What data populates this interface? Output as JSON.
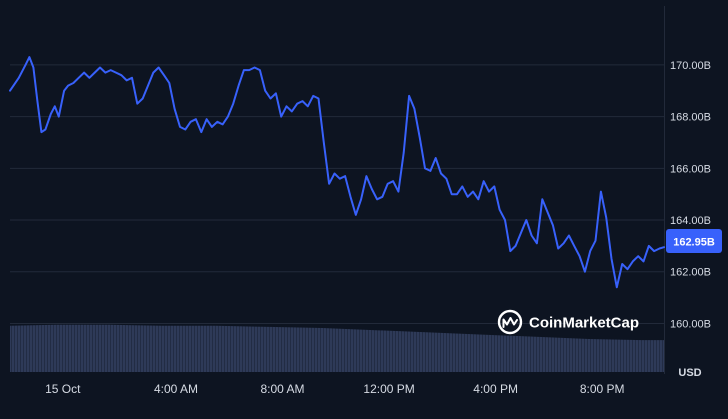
{
  "chart_data": {
    "type": "line",
    "currency": "USD",
    "current_value_label": "162.95B",
    "watermark": "CoinMarketCap",
    "y_ticks": [
      "170.00B",
      "168.00B",
      "166.00B",
      "164.00B",
      "162.00B",
      "160.00B"
    ],
    "ylim": [
      158.2,
      172.2
    ],
    "x_ticks": [
      "15 Oct",
      "4:00 AM",
      "8:00 AM",
      "12:00 PM",
      "4:00 PM",
      "8:00 PM"
    ],
    "x_tick_hours": [
      0.75,
      5.0,
      9.0,
      13.0,
      17.0,
      21.0
    ],
    "x_range_hours": [
      -1.23,
      23.32
    ],
    "series": [
      {
        "values": [
          [
            -1.23,
            169.0
          ],
          [
            -0.9,
            169.5
          ],
          [
            -0.65,
            170.0
          ],
          [
            -0.5,
            170.3
          ],
          [
            -0.35,
            169.9
          ],
          [
            -0.2,
            168.6
          ],
          [
            -0.05,
            167.4
          ],
          [
            0.1,
            167.5
          ],
          [
            0.3,
            168.1
          ],
          [
            0.45,
            168.4
          ],
          [
            0.6,
            168.0
          ],
          [
            0.8,
            169.0
          ],
          [
            0.95,
            169.2
          ],
          [
            1.15,
            169.3
          ],
          [
            1.35,
            169.5
          ],
          [
            1.55,
            169.7
          ],
          [
            1.75,
            169.5
          ],
          [
            1.95,
            169.7
          ],
          [
            2.15,
            169.9
          ],
          [
            2.35,
            169.7
          ],
          [
            2.55,
            169.8
          ],
          [
            2.75,
            169.7
          ],
          [
            2.95,
            169.6
          ],
          [
            3.15,
            169.4
          ],
          [
            3.35,
            169.5
          ],
          [
            3.55,
            168.5
          ],
          [
            3.75,
            168.7
          ],
          [
            3.95,
            169.2
          ],
          [
            4.15,
            169.7
          ],
          [
            4.35,
            169.9
          ],
          [
            4.55,
            169.6
          ],
          [
            4.75,
            169.3
          ],
          [
            4.95,
            168.3
          ],
          [
            5.15,
            167.6
          ],
          [
            5.35,
            167.5
          ],
          [
            5.55,
            167.8
          ],
          [
            5.75,
            167.9
          ],
          [
            5.95,
            167.4
          ],
          [
            6.15,
            167.9
          ],
          [
            6.35,
            167.6
          ],
          [
            6.55,
            167.8
          ],
          [
            6.75,
            167.7
          ],
          [
            6.95,
            168.0
          ],
          [
            7.15,
            168.5
          ],
          [
            7.35,
            169.2
          ],
          [
            7.55,
            169.8
          ],
          [
            7.75,
            169.8
          ],
          [
            7.95,
            169.9
          ],
          [
            8.15,
            169.8
          ],
          [
            8.35,
            169.0
          ],
          [
            8.55,
            168.7
          ],
          [
            8.75,
            168.9
          ],
          [
            8.95,
            168.0
          ],
          [
            9.15,
            168.4
          ],
          [
            9.35,
            168.2
          ],
          [
            9.55,
            168.5
          ],
          [
            9.75,
            168.6
          ],
          [
            9.95,
            168.4
          ],
          [
            10.15,
            168.8
          ],
          [
            10.35,
            168.7
          ],
          [
            10.55,
            167.0
          ],
          [
            10.75,
            165.4
          ],
          [
            10.95,
            165.8
          ],
          [
            11.15,
            165.6
          ],
          [
            11.35,
            165.7
          ],
          [
            11.55,
            164.9
          ],
          [
            11.75,
            164.2
          ],
          [
            11.95,
            164.8
          ],
          [
            12.15,
            165.7
          ],
          [
            12.35,
            165.2
          ],
          [
            12.55,
            164.8
          ],
          [
            12.75,
            164.9
          ],
          [
            12.95,
            165.4
          ],
          [
            13.15,
            165.5
          ],
          [
            13.35,
            165.1
          ],
          [
            13.55,
            166.6
          ],
          [
            13.75,
            168.8
          ],
          [
            13.95,
            168.3
          ],
          [
            14.15,
            167.2
          ],
          [
            14.35,
            166.0
          ],
          [
            14.55,
            165.9
          ],
          [
            14.75,
            166.4
          ],
          [
            14.95,
            165.8
          ],
          [
            15.15,
            165.6
          ],
          [
            15.35,
            165.0
          ],
          [
            15.55,
            165.0
          ],
          [
            15.75,
            165.3
          ],
          [
            15.95,
            164.9
          ],
          [
            16.15,
            165.1
          ],
          [
            16.35,
            164.8
          ],
          [
            16.55,
            165.5
          ],
          [
            16.75,
            165.1
          ],
          [
            16.95,
            165.3
          ],
          [
            17.15,
            164.4
          ],
          [
            17.35,
            164.0
          ],
          [
            17.55,
            162.8
          ],
          [
            17.75,
            163.0
          ],
          [
            17.95,
            163.5
          ],
          [
            18.15,
            164.0
          ],
          [
            18.35,
            163.4
          ],
          [
            18.55,
            163.1
          ],
          [
            18.75,
            164.8
          ],
          [
            18.95,
            164.3
          ],
          [
            19.15,
            163.8
          ],
          [
            19.35,
            162.9
          ],
          [
            19.55,
            163.1
          ],
          [
            19.75,
            163.4
          ],
          [
            19.95,
            163.0
          ],
          [
            20.15,
            162.6
          ],
          [
            20.35,
            162.0
          ],
          [
            20.55,
            162.8
          ],
          [
            20.75,
            163.2
          ],
          [
            20.95,
            165.1
          ],
          [
            21.15,
            164.1
          ],
          [
            21.35,
            162.5
          ],
          [
            21.55,
            161.4
          ],
          [
            21.75,
            162.3
          ],
          [
            21.95,
            162.1
          ],
          [
            22.15,
            162.4
          ],
          [
            22.35,
            162.6
          ],
          [
            22.55,
            162.4
          ],
          [
            22.75,
            163.0
          ],
          [
            22.95,
            162.8
          ],
          [
            23.15,
            162.9
          ],
          [
            23.32,
            162.95
          ]
        ],
        "color": "#3861fb"
      }
    ],
    "volume": [
      [
        -1.23,
        0.42
      ],
      [
        0.5,
        0.43
      ],
      [
        2.5,
        0.43
      ],
      [
        4.5,
        0.42
      ],
      [
        6.5,
        0.42
      ],
      [
        8.5,
        0.41
      ],
      [
        10.5,
        0.4
      ],
      [
        12.5,
        0.38
      ],
      [
        14.5,
        0.36
      ],
      [
        16.5,
        0.34
      ],
      [
        18.5,
        0.32
      ],
      [
        20.5,
        0.3
      ],
      [
        22.5,
        0.29
      ],
      [
        23.32,
        0.29
      ]
    ],
    "grid": {
      "horizontal": true,
      "vertical": false
    },
    "colors": {
      "background": "#0d1421",
      "line": "#3861fb",
      "grid": "#222a3a",
      "volume_fill": "#2a3550",
      "badge": "#3861fb"
    }
  }
}
